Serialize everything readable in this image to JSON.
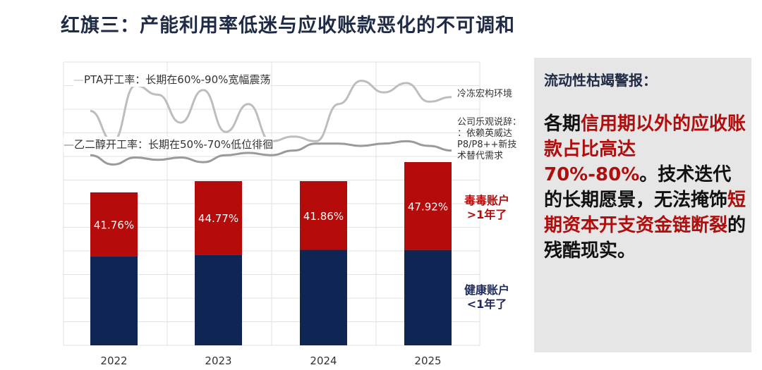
{
  "title": "红旗三：产能利用率低迷与应收账款恶化的不可调和",
  "chart_data": {
    "type": "bar",
    "categories": [
      "2022",
      "2023",
      "2024",
      "2025"
    ],
    "bar_totals": [
      217,
      233,
      233,
      260
    ],
    "series": [
      {
        "name": "健康账户 <1年了",
        "share_pct": [
          58.24,
          55.23,
          58.14,
          52.08
        ],
        "color": "#0f2553"
      },
      {
        "name": "毒毒账户 >1年了",
        "share_pct": [
          41.76,
          44.77,
          41.86,
          47.92
        ],
        "labels": [
          "41.76%",
          "44.77%",
          "41.86%",
          "47.92%"
        ],
        "color": "#b50b0b"
      }
    ],
    "lines": [
      {
        "name": "PTA开工率：长期在60%-90%宽幅震荡",
        "color": "#bdbdbd",
        "values": [
          75,
          62,
          86,
          82,
          70,
          84,
          66,
          78,
          62,
          64,
          62,
          78,
          88,
          83,
          87,
          79,
          81
        ]
      },
      {
        "name": "乙二醇开工率：长期在50%-70%低位徘徊",
        "color": "#9a9a9a",
        "values": [
          56,
          52,
          55,
          54,
          55,
          53,
          56,
          57,
          56,
          58,
          61,
          61,
          60,
          61,
          62,
          60,
          58
        ]
      }
    ],
    "annotations": [
      "冷冻宏构环境",
      "公司乐观说辞：：依赖英威达P8/P8++新技术替代需求"
    ],
    "grid": true
  },
  "labels": {
    "pta": "PTA开工率：长期在60%-90%宽幅震荡",
    "meg": "乙二醇开工率：长期在50%-70%低位徘徊",
    "ann1": "冷冻宏构环境",
    "ann2a": "公司乐观说辞：",
    "ann2b": "：依赖英威达",
    "ann2c": "P8/P8++新技",
    "ann2d": "术替代需求",
    "toxic1": "毒毒账户",
    "toxic2": ">1年了",
    "healthy1": "健康账户",
    "healthy2": "<1年了"
  },
  "panel": {
    "heading": "流动性枯竭警报：",
    "p1": "各期",
    "p2": "信用期以外的应收账款占比高达70%-80%",
    "p3": "。技术迭代的长期愿景，无法掩饰",
    "p4": "短期资本开支资金链断裂",
    "p5": "的残酷现实。"
  }
}
